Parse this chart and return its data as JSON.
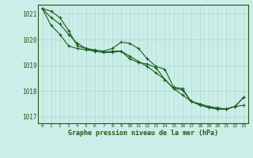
{
  "title": "Graphe pression niveau de la mer (hPa)",
  "xlabel_hours": [
    0,
    1,
    2,
    3,
    4,
    5,
    6,
    7,
    8,
    9,
    10,
    11,
    12,
    13,
    14,
    15,
    16,
    17,
    18,
    19,
    20,
    21,
    22,
    23
  ],
  "ylim": [
    1016.75,
    1021.35
  ],
  "yticks": [
    1017,
    1018,
    1019,
    1020,
    1021
  ],
  "background_color": "#cceee8",
  "grid_color": "#aad8d0",
  "line_color": "#1a5c1a",
  "line1": [
    1021.2,
    1020.85,
    1020.6,
    1020.2,
    1019.85,
    1019.65,
    1019.55,
    1019.5,
    1019.5,
    1019.55,
    1019.35,
    1019.15,
    1018.95,
    1018.7,
    1018.45,
    1018.1,
    1017.85,
    1017.6,
    1017.5,
    1017.4,
    1017.35,
    1017.3,
    1017.4,
    1017.45
  ],
  "line2": [
    1021.2,
    1021.1,
    1020.85,
    1020.35,
    1019.75,
    1019.65,
    1019.6,
    1019.55,
    1019.65,
    1019.9,
    1019.85,
    1019.65,
    1019.25,
    1018.95,
    1018.85,
    1018.15,
    1018.1,
    1017.6,
    1017.5,
    1017.4,
    1017.3,
    1017.3,
    1017.4,
    1017.75
  ],
  "line3": [
    1021.2,
    1020.55,
    1020.2,
    1019.75,
    1019.65,
    1019.6,
    1019.55,
    1019.5,
    1019.55,
    1019.55,
    1019.25,
    1019.1,
    1019.05,
    1018.9,
    1018.45,
    1018.1,
    1018.05,
    1017.6,
    1017.45,
    1017.35,
    1017.3,
    1017.3,
    1017.4,
    1017.75
  ],
  "marker": "+",
  "markersize": 3.5,
  "linewidth": 0.8
}
